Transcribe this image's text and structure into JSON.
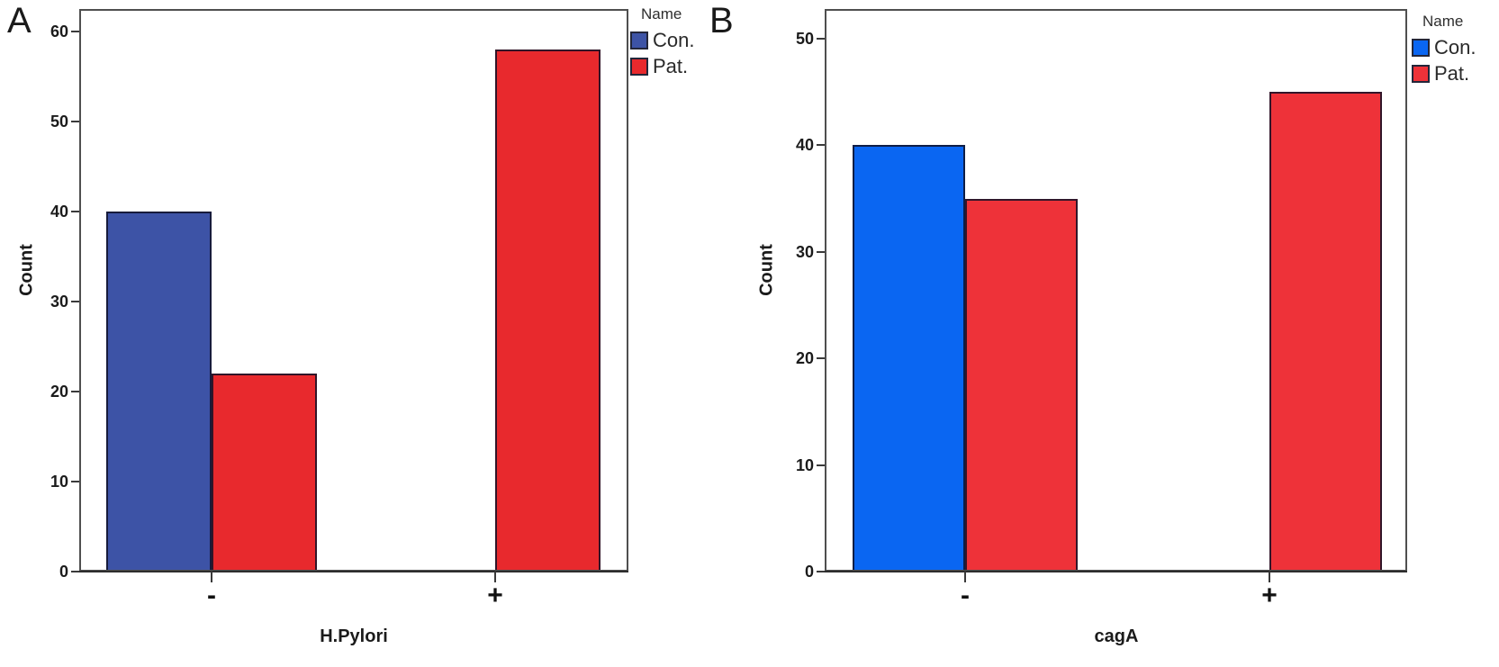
{
  "figure": {
    "background": "#ffffff",
    "panel_count": 2
  },
  "chart_data": [
    {
      "type": "bar",
      "panel_label": "A",
      "title": "",
      "xlabel": "H.Pylori",
      "ylabel": "Count",
      "categories": [
        "-",
        "+"
      ],
      "series": [
        {
          "name": "Con.",
          "color": "#3D53A6",
          "values": [
            40,
            0
          ]
        },
        {
          "name": "Pat.",
          "color": "#E8292D",
          "values": [
            22,
            58
          ]
        }
      ],
      "ylim": [
        0,
        60
      ],
      "ytick_step": 10,
      "ytick_labels": [
        "0",
        "10",
        "20",
        "30",
        "40",
        "50",
        "60"
      ],
      "legend_title": "Name",
      "legend_position": "right",
      "grid": false
    },
    {
      "type": "bar",
      "panel_label": "B",
      "title": "",
      "xlabel": "cagA",
      "ylabel": "Count",
      "categories": [
        "-",
        "+"
      ],
      "series": [
        {
          "name": "Con.",
          "color": "#0A66F2",
          "values": [
            40,
            0
          ]
        },
        {
          "name": "Pat.",
          "color": "#EE3239",
          "values": [
            35,
            45
          ]
        }
      ],
      "ylim": [
        0,
        50
      ],
      "ytick_step": 10,
      "ytick_labels": [
        "0",
        "10",
        "20",
        "30",
        "40",
        "50"
      ],
      "legend_title": "Name",
      "legend_position": "right",
      "grid": false
    }
  ]
}
